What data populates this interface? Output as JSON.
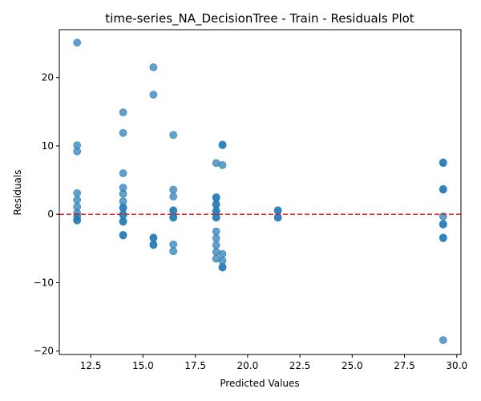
{
  "chart_data": {
    "type": "scatter",
    "title": "time-series_NA_DecisionTree - Train - Residuals Plot",
    "xlabel": "Predicted Values",
    "ylabel": "Residuals",
    "xlim": [
      11.0,
      30.2
    ],
    "ylim": [
      -20.5,
      27.0
    ],
    "xticks": [
      12.5,
      15.0,
      17.5,
      20.0,
      22.5,
      25.0,
      27.5,
      30.0
    ],
    "xtick_labels": [
      "12.5",
      "15.0",
      "17.5",
      "20.0",
      "22.5",
      "25.0",
      "27.5",
      "30.0"
    ],
    "yticks": [
      -20,
      -10,
      0,
      10,
      20
    ],
    "ytick_labels": [
      "−20",
      "−10",
      "0",
      "10",
      "20"
    ],
    "grid": false,
    "reference_line": {
      "y": 0,
      "color": "#d62728",
      "style": "dashed"
    },
    "point_color": "#1f77b4",
    "point_alpha": 0.7,
    "points": [
      {
        "x": 11.85,
        "y": 25.1
      },
      {
        "x": 11.85,
        "y": 10.1
      },
      {
        "x": 11.85,
        "y": 9.2
      },
      {
        "x": 11.85,
        "y": 3.1
      },
      {
        "x": 11.85,
        "y": 2.1
      },
      {
        "x": 11.85,
        "y": 1.1
      },
      {
        "x": 11.85,
        "y": 0.2
      },
      {
        "x": 11.85,
        "y": -0.3
      },
      {
        "x": 11.85,
        "y": -0.8
      },
      {
        "x": 11.85,
        "y": -0.9
      },
      {
        "x": 14.05,
        "y": 14.9
      },
      {
        "x": 14.05,
        "y": 11.9
      },
      {
        "x": 14.05,
        "y": 6.0
      },
      {
        "x": 14.05,
        "y": 3.9
      },
      {
        "x": 14.05,
        "y": 3.0
      },
      {
        "x": 14.05,
        "y": 1.9
      },
      {
        "x": 14.05,
        "y": 1.0
      },
      {
        "x": 14.05,
        "y": 0.9
      },
      {
        "x": 14.05,
        "y": 0.0
      },
      {
        "x": 14.05,
        "y": -0.1
      },
      {
        "x": 14.05,
        "y": -1.0
      },
      {
        "x": 14.05,
        "y": -1.1
      },
      {
        "x": 14.05,
        "y": -3.0
      },
      {
        "x": 14.05,
        "y": -3.1
      },
      {
        "x": 15.5,
        "y": 21.5
      },
      {
        "x": 15.5,
        "y": 17.5
      },
      {
        "x": 15.5,
        "y": -3.4
      },
      {
        "x": 15.5,
        "y": -3.5
      },
      {
        "x": 15.5,
        "y": -4.4
      },
      {
        "x": 15.5,
        "y": -4.5
      },
      {
        "x": 16.45,
        "y": 11.6
      },
      {
        "x": 16.45,
        "y": 3.6
      },
      {
        "x": 16.45,
        "y": 2.6
      },
      {
        "x": 16.45,
        "y": 0.6
      },
      {
        "x": 16.45,
        "y": 0.5
      },
      {
        "x": 16.45,
        "y": -0.4
      },
      {
        "x": 16.45,
        "y": -0.5
      },
      {
        "x": 16.45,
        "y": -4.4
      },
      {
        "x": 16.45,
        "y": -5.4
      },
      {
        "x": 18.5,
        "y": 7.5
      },
      {
        "x": 18.5,
        "y": 2.5
      },
      {
        "x": 18.5,
        "y": 2.4
      },
      {
        "x": 18.5,
        "y": 1.5
      },
      {
        "x": 18.5,
        "y": 1.4
      },
      {
        "x": 18.5,
        "y": 0.5
      },
      {
        "x": 18.5,
        "y": 0.4
      },
      {
        "x": 18.5,
        "y": -0.4
      },
      {
        "x": 18.5,
        "y": -0.5
      },
      {
        "x": 18.5,
        "y": -2.5
      },
      {
        "x": 18.5,
        "y": -3.5
      },
      {
        "x": 18.5,
        "y": -4.5
      },
      {
        "x": 18.5,
        "y": -5.5
      },
      {
        "x": 18.5,
        "y": -6.5
      },
      {
        "x": 18.8,
        "y": 10.2
      },
      {
        "x": 18.8,
        "y": 10.1
      },
      {
        "x": 18.8,
        "y": 7.2
      },
      {
        "x": 18.8,
        "y": -5.8
      },
      {
        "x": 18.8,
        "y": -6.8
      },
      {
        "x": 18.8,
        "y": -7.7
      },
      {
        "x": 18.8,
        "y": -7.8
      },
      {
        "x": 21.45,
        "y": 0.6
      },
      {
        "x": 21.45,
        "y": 0.5
      },
      {
        "x": 21.45,
        "y": -0.4
      },
      {
        "x": 21.45,
        "y": -0.5
      },
      {
        "x": 29.35,
        "y": 7.6
      },
      {
        "x": 29.35,
        "y": 7.5
      },
      {
        "x": 29.35,
        "y": 3.7
      },
      {
        "x": 29.35,
        "y": 3.6
      },
      {
        "x": 29.35,
        "y": -0.3
      },
      {
        "x": 29.35,
        "y": -1.4
      },
      {
        "x": 29.35,
        "y": -1.5
      },
      {
        "x": 29.35,
        "y": -3.4
      },
      {
        "x": 29.35,
        "y": -3.5
      },
      {
        "x": 29.35,
        "y": -18.4
      }
    ]
  }
}
